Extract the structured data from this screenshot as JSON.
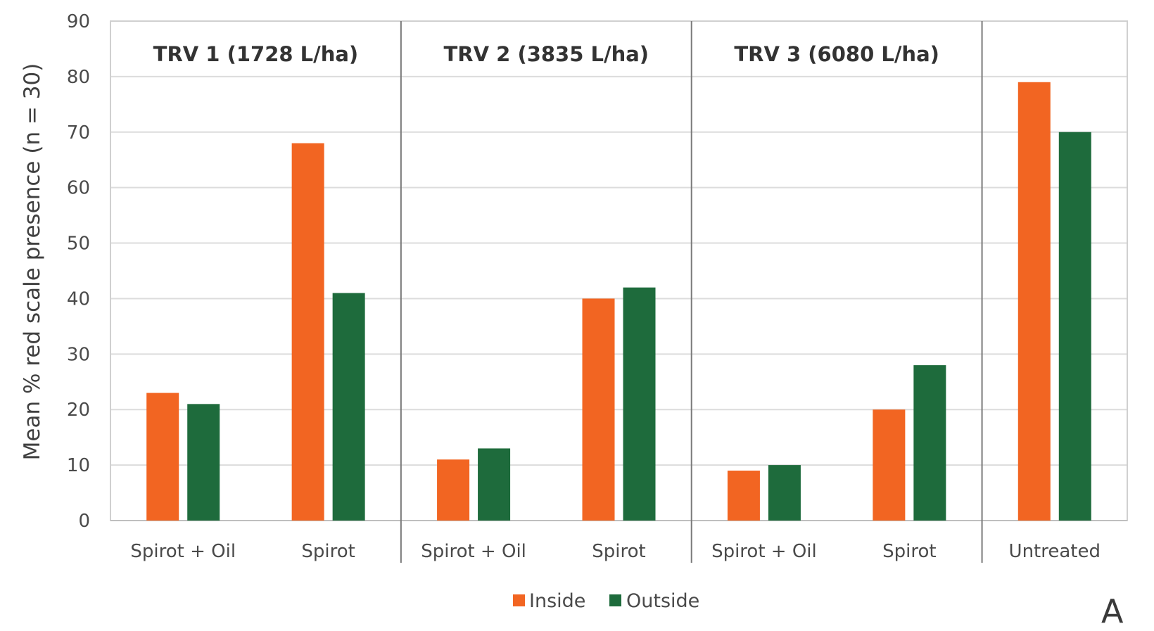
{
  "chart_data": {
    "type": "bar",
    "ylabel": "Mean % red scale presence (n = 30)",
    "ylim": [
      0,
      90
    ],
    "yticks": [
      "0",
      "10",
      "20",
      "30",
      "40",
      "50",
      "60",
      "70",
      "80",
      "90"
    ],
    "grid": true,
    "legend_position": "bottom-center",
    "panel_letter": "A",
    "panels": [
      {
        "title": "TRV 1 (1728 L/ha)",
        "categories": [
          "Spirot + Oil",
          "Spirot"
        ]
      },
      {
        "title": "TRV 2 (3835 L/ha)",
        "categories": [
          "Spirot + Oil",
          "Spirot"
        ]
      },
      {
        "title": "TRV 3 (6080 L/ha)",
        "categories": [
          "Spirot + Oil",
          "Spirot"
        ]
      },
      {
        "title": "",
        "categories": [
          "Untreated"
        ]
      }
    ],
    "categories": [
      "Spirot + Oil",
      "Spirot",
      "Spirot + Oil",
      "Spirot",
      "Spirot + Oil",
      "Spirot",
      "Untreated"
    ],
    "series": [
      {
        "name": "Inside",
        "color": "#f26522",
        "values": [
          23,
          68,
          11,
          40,
          9,
          20,
          79
        ]
      },
      {
        "name": "Outside",
        "color": "#1e6b3c",
        "values": [
          21,
          41,
          13,
          42,
          10,
          28,
          70
        ]
      }
    ]
  }
}
